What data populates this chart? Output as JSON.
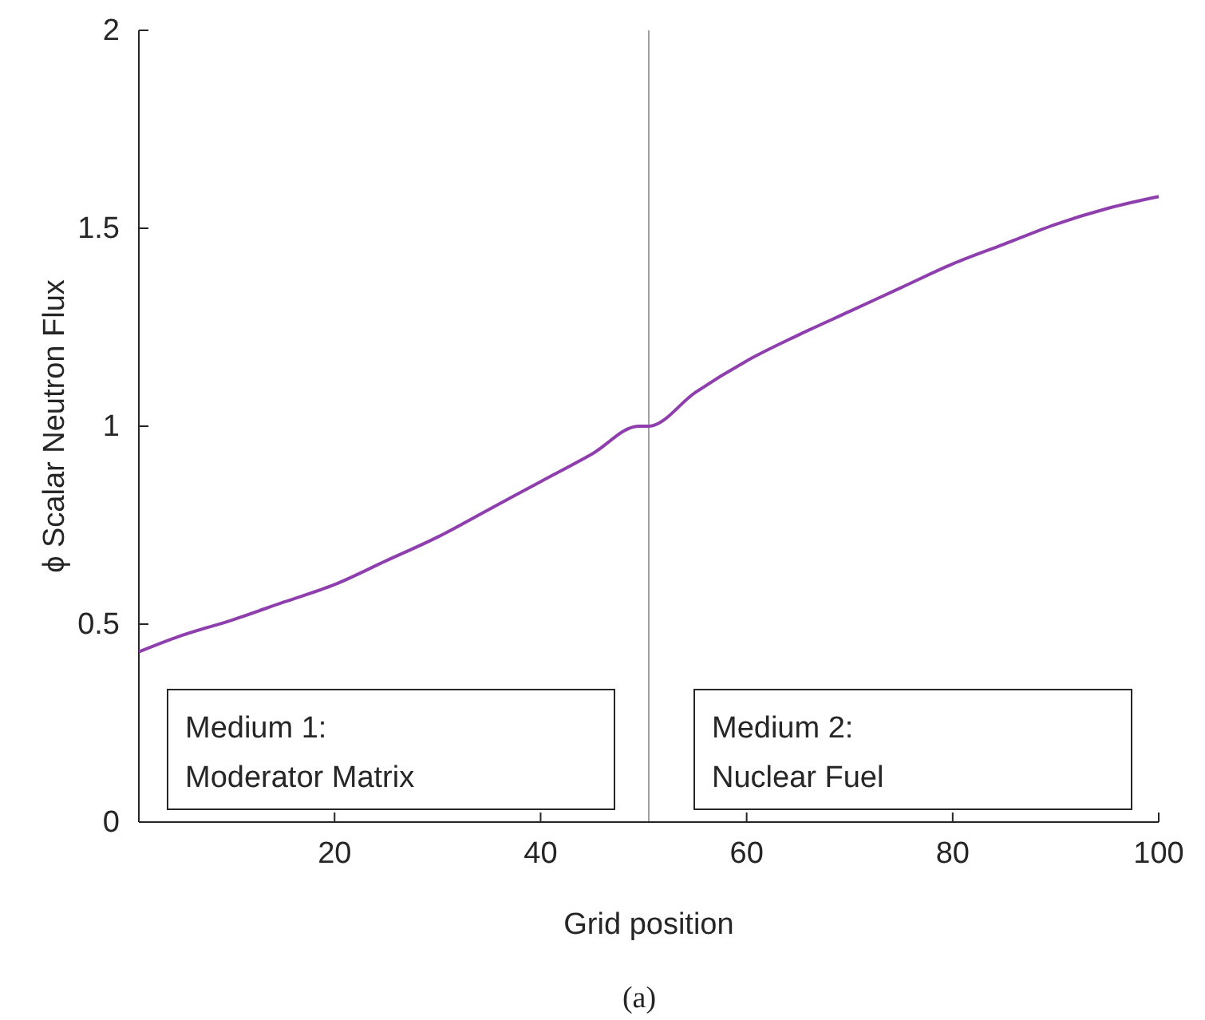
{
  "chart_data": {
    "type": "line",
    "xlabel": "Grid position",
    "ylabel": "ϕ Scalar Neutron Flux",
    "series": [
      {
        "color": "#8e3fad",
        "x": [
          1,
          5,
          10,
          15,
          20,
          25,
          30,
          35,
          40,
          45,
          49.5,
          50.5,
          55,
          60,
          65,
          70,
          75,
          80,
          85,
          90,
          95,
          100
        ],
        "values": [
          0.43,
          0.47,
          0.51,
          0.555,
          0.6,
          0.66,
          0.72,
          0.79,
          0.86,
          0.93,
          1.0,
          1.0,
          1.085,
          1.165,
          1.23,
          1.29,
          1.35,
          1.41,
          1.46,
          1.51,
          1.55,
          1.58
        ]
      }
    ],
    "xlim": [
      1,
      100
    ],
    "xticks": [
      20,
      40,
      60,
      80,
      100
    ],
    "ylim": [
      0,
      2
    ],
    "yticks": [
      0,
      0.5,
      1,
      1.5,
      2
    ],
    "grid": false,
    "line_style": "solid",
    "marker": "none",
    "ref_lines": [
      {
        "axis": "x",
        "value": 50.5,
        "color": "#a0a0a0"
      }
    ],
    "annotations": [
      "Medium 1:\nModerator Matrix",
      "Medium 2:\nNuclear Fuel",
      "(a)"
    ]
  }
}
